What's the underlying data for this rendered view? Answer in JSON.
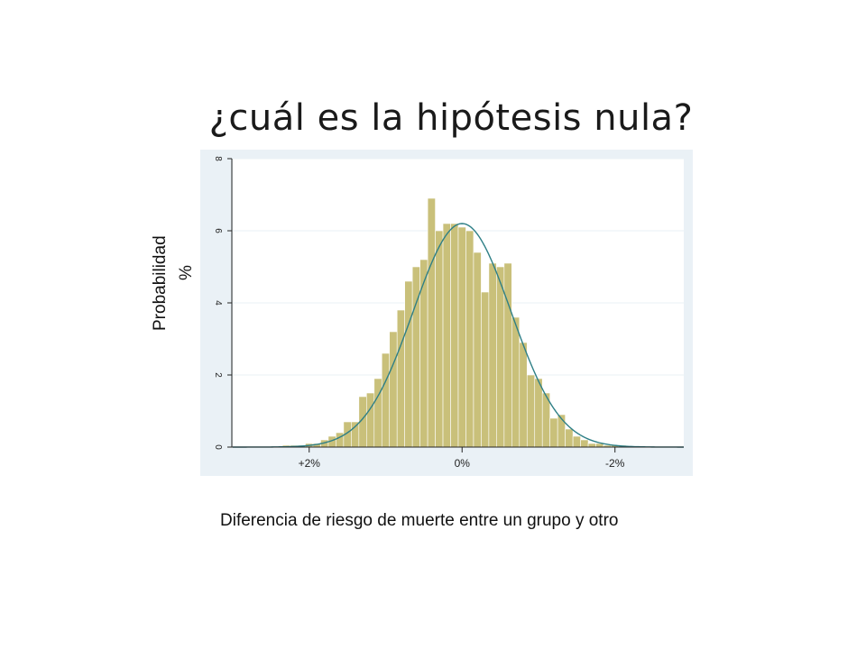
{
  "title": "¿cuál es la hipótesis nula?",
  "ylabel_lines": [
    "Probabilidad",
    "%"
  ],
  "xlabel": "Diferencia de riesgo de muerte entre un grupo y otro",
  "colors": {
    "bar_fill": "#c9c07a",
    "bar_stroke": "#ffffff",
    "curve": "#2e7f86",
    "plot_background": "#eaf1f6",
    "axis": "#222222",
    "grid": "#ffffff"
  },
  "chart_data": {
    "type": "bar",
    "subtype": "histogram_with_normal_curve",
    "x_axis_reversed": true,
    "xlim": [
      3.0,
      -2.9
    ],
    "ylim": [
      0,
      8
    ],
    "grid": true,
    "legend": "none",
    "x_ticks": [
      {
        "value": 2,
        "label": "+2%"
      },
      {
        "value": 0,
        "label": "0%"
      },
      {
        "value": -2,
        "label": "-2%"
      }
    ],
    "y_ticks": [
      {
        "value": 0,
        "label": "0"
      },
      {
        "value": 2,
        "label": "2"
      },
      {
        "value": 4,
        "label": "4"
      },
      {
        "value": 6,
        "label": "6"
      },
      {
        "value": 8,
        "label": "8"
      }
    ],
    "bin_width": 0.1,
    "bins": [
      {
        "x": 3.0,
        "y": 0
      },
      {
        "x": 2.9,
        "y": 0
      },
      {
        "x": 2.8,
        "y": 0
      },
      {
        "x": 2.7,
        "y": 0
      },
      {
        "x": 2.6,
        "y": 0
      },
      {
        "x": 2.5,
        "y": 0
      },
      {
        "x": 2.4,
        "y": 0
      },
      {
        "x": 2.3,
        "y": 0.05
      },
      {
        "x": 2.2,
        "y": 0.05
      },
      {
        "x": 2.1,
        "y": 0.05
      },
      {
        "x": 2.0,
        "y": 0.1
      },
      {
        "x": 1.9,
        "y": 0.1
      },
      {
        "x": 1.8,
        "y": 0.2
      },
      {
        "x": 1.7,
        "y": 0.3
      },
      {
        "x": 1.6,
        "y": 0.4
      },
      {
        "x": 1.5,
        "y": 0.7
      },
      {
        "x": 1.4,
        "y": 0.7
      },
      {
        "x": 1.3,
        "y": 1.4
      },
      {
        "x": 1.2,
        "y": 1.5
      },
      {
        "x": 1.1,
        "y": 1.9
      },
      {
        "x": 1.0,
        "y": 2.6
      },
      {
        "x": 0.9,
        "y": 3.2
      },
      {
        "x": 0.8,
        "y": 3.8
      },
      {
        "x": 0.7,
        "y": 4.6
      },
      {
        "x": 0.6,
        "y": 5.0
      },
      {
        "x": 0.5,
        "y": 5.2
      },
      {
        "x": 0.4,
        "y": 6.9
      },
      {
        "x": 0.3,
        "y": 6.0
      },
      {
        "x": 0.2,
        "y": 6.2
      },
      {
        "x": 0.1,
        "y": 6.2
      },
      {
        "x": 0.0,
        "y": 6.1
      },
      {
        "x": -0.1,
        "y": 6.0
      },
      {
        "x": -0.2,
        "y": 5.4
      },
      {
        "x": -0.3,
        "y": 4.3
      },
      {
        "x": -0.4,
        "y": 5.1
      },
      {
        "x": -0.5,
        "y": 5.0
      },
      {
        "x": -0.6,
        "y": 5.1
      },
      {
        "x": -0.7,
        "y": 3.6
      },
      {
        "x": -0.8,
        "y": 2.9
      },
      {
        "x": -0.9,
        "y": 2.0
      },
      {
        "x": -1.0,
        "y": 1.9
      },
      {
        "x": -1.1,
        "y": 1.5
      },
      {
        "x": -1.2,
        "y": 0.8
      },
      {
        "x": -1.3,
        "y": 0.9
      },
      {
        "x": -1.4,
        "y": 0.5
      },
      {
        "x": -1.5,
        "y": 0.3
      },
      {
        "x": -1.6,
        "y": 0.2
      },
      {
        "x": -1.7,
        "y": 0.1
      },
      {
        "x": -1.8,
        "y": 0.1
      },
      {
        "x": -1.9,
        "y": 0.05
      },
      {
        "x": -2.0,
        "y": 0.05
      },
      {
        "x": -2.1,
        "y": 0.05
      },
      {
        "x": -2.2,
        "y": 0
      },
      {
        "x": -2.3,
        "y": 0
      },
      {
        "x": -2.4,
        "y": 0
      },
      {
        "x": -2.5,
        "y": 0
      },
      {
        "x": -2.6,
        "y": 0
      },
      {
        "x": -2.7,
        "y": 0
      },
      {
        "x": -2.8,
        "y": 0
      }
    ],
    "curve": {
      "type": "normal",
      "mean": 0.0,
      "sd": 0.64,
      "peak": 6.2
    }
  }
}
